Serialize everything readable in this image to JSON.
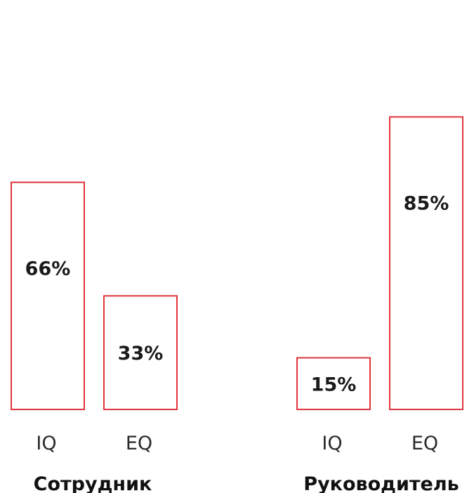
{
  "chart_data": {
    "type": "bar",
    "groups": [
      {
        "name": "Сотрудник",
        "categories": [
          "IQ",
          "EQ"
        ],
        "values": [
          66,
          33
        ],
        "value_labels": [
          "66%",
          "33%"
        ]
      },
      {
        "name": "Руководитель",
        "categories": [
          "IQ",
          "EQ"
        ],
        "values": [
          15,
          85
        ],
        "value_labels": [
          "15%",
          "85%"
        ]
      }
    ],
    "unit": "%",
    "colors": {
      "bar_stroke": "#e0353b",
      "bar_fill": "#ffffff",
      "text": "#1a1a1a"
    },
    "grid": false,
    "legend": "none"
  }
}
